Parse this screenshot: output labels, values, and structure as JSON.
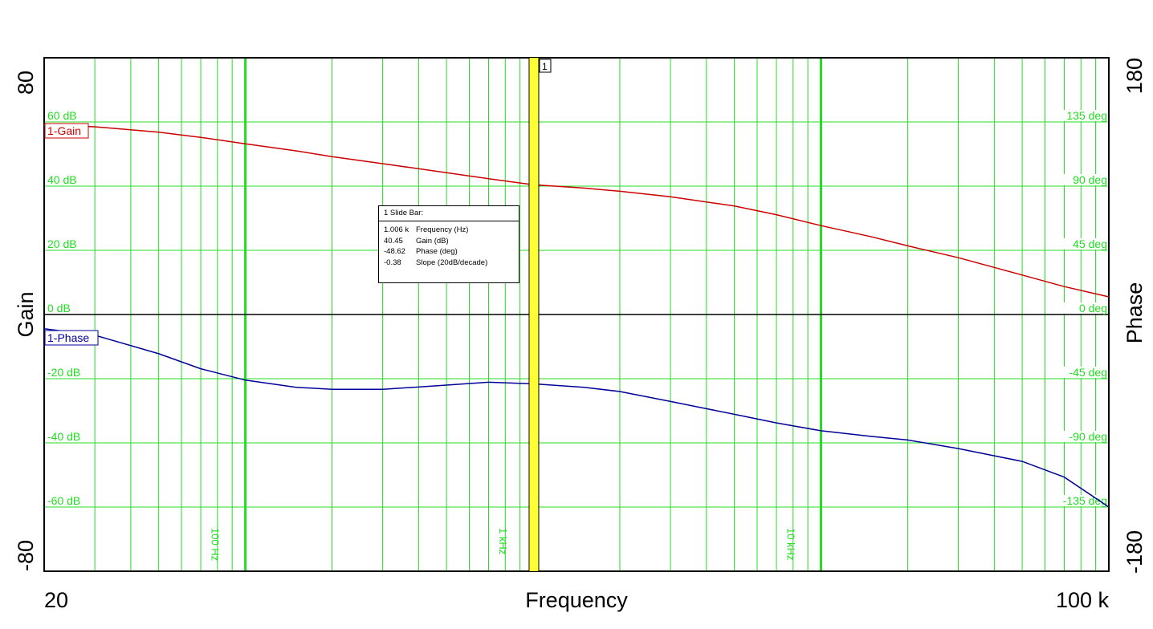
{
  "chart_data": {
    "type": "line",
    "title": "",
    "xlabel": "Frequency",
    "x_scale": "log",
    "xlim": [
      20,
      100000
    ],
    "x_tick_labels": {
      "min": "20",
      "max": "100 k"
    },
    "x_decade_labels": [
      "100 Hz",
      "1 kHz",
      "10 kHz"
    ],
    "left_axis": {
      "label": "Gain",
      "color": "#dd0000",
      "ylim": [
        -80,
        80
      ],
      "min_label": "-80",
      "max_label": "80",
      "tick_labels": [
        "60 dB",
        "40 dB",
        "20 dB",
        "0 dB",
        "-20 dB",
        "-40 dB",
        "-60 dB"
      ]
    },
    "right_axis": {
      "label": "Phase",
      "color": "#0000cc",
      "ylim": [
        -180,
        180
      ],
      "min_label": "-180",
      "max_label": "180",
      "tick_labels": [
        "135 deg",
        "90 deg",
        "45 deg",
        "0 deg",
        "-45 deg",
        "-90 deg",
        "-135 deg"
      ]
    },
    "grid": true,
    "series": [
      {
        "name": "1-Gain",
        "axis": "left",
        "unit": "dB",
        "color": "#cc0000",
        "x": [
          20,
          30,
          50,
          70,
          100,
          150,
          200,
          300,
          500,
          700,
          1000,
          1500,
          2000,
          3000,
          5000,
          7000,
          10000,
          15000,
          20000,
          30000,
          50000,
          70000,
          100000
        ],
        "y": [
          59,
          58.5,
          56.8,
          55.2,
          53.2,
          51,
          49.2,
          47,
          44.2,
          42.3,
          40.45,
          39.4,
          38.4,
          36.7,
          33.8,
          31.1,
          27.7,
          24.2,
          21.4,
          17.7,
          12.3,
          8.7,
          5.5
        ]
      },
      {
        "name": "1-Phase",
        "axis": "right",
        "unit": "deg",
        "color": "#000099",
        "x": [
          20,
          30,
          50,
          70,
          100,
          150,
          200,
          300,
          500,
          700,
          1000,
          1500,
          2000,
          3000,
          5000,
          7000,
          10000,
          15000,
          20000,
          30000,
          50000,
          70000,
          100000
        ],
        "y": [
          -10,
          -14.5,
          -27.5,
          -38,
          -46,
          -51,
          -52.5,
          -52.5,
          -49.5,
          -47.5,
          -48.6,
          -51,
          -54,
          -61,
          -70,
          -76,
          -81.5,
          -85.5,
          -88,
          -94,
          -103,
          -114,
          -135
        ]
      }
    ],
    "cursor": {
      "marker": "1",
      "x": 1006,
      "readout_title": "1  Slide Bar:",
      "readout": [
        {
          "value": "1.006 k",
          "label": "Frequency (Hz)"
        },
        {
          "value": "40.45",
          "label": "Gain (dB)"
        },
        {
          "value": "-48.62",
          "label": "Phase (deg)"
        },
        {
          "value": "-0.38",
          "label": "Slope (20dB/decade)"
        }
      ]
    }
  }
}
